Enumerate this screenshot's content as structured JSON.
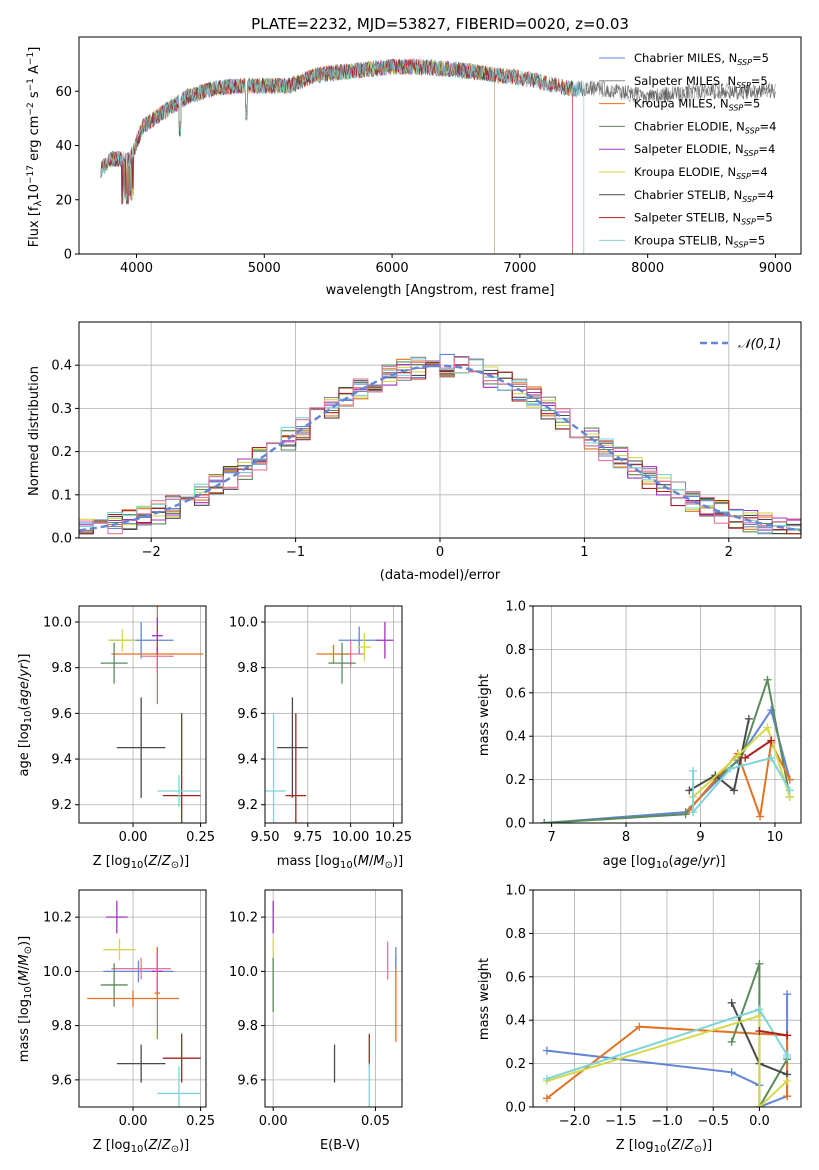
{
  "colors": [
    "#6285d6",
    "#888888",
    "#e37222",
    "#5b8a5b",
    "#a033c0",
    "#d4d94a",
    "#4a4a4a",
    "#a82020",
    "#7ed4d8",
    "#e07aa0"
  ],
  "chart_data": [
    {
      "id": "spectrum",
      "type": "line",
      "title": "PLATE=2232, MJD=53827, FIBERID=0020, z=0.03",
      "xlabel": "wavelength [Angstrom, rest frame]",
      "ylabel": "Flux [f_λ10^-17 erg cm^-2 s^-1 A^-1]",
      "xlim": [
        3550,
        9200
      ],
      "ylim": [
        0,
        80
      ],
      "xticks": [
        "4000",
        "5000",
        "6000",
        "7000",
        "8000",
        "9000"
      ],
      "yticks": [
        "0",
        "20",
        "40",
        "60"
      ],
      "grid": false,
      "legend_position": "top-right",
      "continuum": {
        "x": [
          3700,
          3800,
          3950,
          4050,
          4200,
          4400,
          4600,
          4800,
          5000,
          5200,
          5400,
          5600,
          5800,
          6000,
          6200,
          6500,
          6800,
          7000,
          7200,
          7400,
          7600,
          8000,
          8400,
          8800,
          9000
        ],
        "y": [
          30,
          35,
          35,
          47,
          52,
          58,
          61,
          62,
          62,
          62,
          66,
          67,
          68,
          69,
          69,
          68,
          66,
          65,
          63,
          61,
          61,
          58,
          60,
          60,
          60
        ]
      },
      "series": [
        {
          "name": "Chabrier MILES, N_SSP=5",
          "color": "#6285d6",
          "x_end": 7500
        },
        {
          "name": "Salpeter MILES, N_SSP=5",
          "color": "#888888",
          "x_end": 9000
        },
        {
          "name": "Kroupa MILES, N_SSP=5",
          "color": "#e37222",
          "x_end": 7410
        },
        {
          "name": "Chabrier ELODIE, N_SSP=4",
          "color": "#5b8a5b",
          "x_end": 6800
        },
        {
          "name": "Salpeter ELODIE, N_SSP=4",
          "color": "#a033c0",
          "x_end": 6800
        },
        {
          "name": "Kroupa ELODIE, N_SSP=4",
          "color": "#d4d94a",
          "x_end": 6800
        },
        {
          "name": "Chabrier STELIB, N_SSP=4",
          "color": "#4a4a4a",
          "x_end": 9000
        },
        {
          "name": "Salpeter STELIB, N_SSP=5",
          "color": "#a82020",
          "x_end": 7410
        },
        {
          "name": "Kroupa STELIB, N_SSP=5",
          "color": "#7ed4d8",
          "x_end": 7500
        }
      ]
    },
    {
      "id": "residuals",
      "type": "line",
      "xlabel": "(data-model)/error",
      "ylabel": "Normed distribution",
      "xlim": [
        -2.5,
        2.5
      ],
      "ylim": [
        0,
        0.5
      ],
      "xticks": [
        "−2",
        "−1",
        "0",
        "1",
        "2"
      ],
      "yticks": [
        "0.0",
        "0.1",
        "0.2",
        "0.3",
        "0.4"
      ],
      "grid": true,
      "legend": "𝒩(0,1)",
      "legend_position": "top-right",
      "gaussian_color": "#6285d6",
      "n_hist_series": 10,
      "bin_width": 0.1
    },
    {
      "id": "age-vs-Z",
      "type": "scatter",
      "xlabel": "Z [log10(Z/Z⊙)]",
      "ylabel": "age [log10(age/yr)]",
      "xlim": [
        -0.2,
        0.27
      ],
      "ylim": [
        9.12,
        10.07
      ],
      "xticks": [
        {
          "v": 0.0,
          "t": "0.00"
        },
        {
          "v": 0.25,
          "t": "0.25"
        }
      ],
      "yticks": [
        {
          "v": 9.2,
          "t": "9.2"
        },
        {
          "v": 9.4,
          "t": "9.4"
        },
        {
          "v": 9.6,
          "t": "9.6"
        },
        {
          "v": 9.8,
          "t": "9.8"
        },
        {
          "v": 10.0,
          "t": "10.0"
        }
      ],
      "grid": true,
      "points": [
        {
          "x": 0.03,
          "y": 9.92,
          "xe": 0.12,
          "ye": 0.08,
          "c": "#6285d6"
        },
        {
          "x": 0.09,
          "y": 9.85,
          "xe": 0.06,
          "ye": 0.06,
          "c": "#e07aa0"
        },
        {
          "x": 0.09,
          "y": 9.86,
          "xe": 0.17,
          "ye": 0.22,
          "c": "#e37222"
        },
        {
          "x": -0.07,
          "y": 9.82,
          "xe": 0.05,
          "ye": 0.09,
          "c": "#5b8a5b"
        },
        {
          "x": -0.04,
          "y": 9.92,
          "xe": 0.05,
          "ye": 0.05,
          "c": "#d4d94a"
        },
        {
          "x": 0.03,
          "y": 9.45,
          "xe": 0.09,
          "ye": 0.22,
          "c": "#4a4a4a"
        },
        {
          "x": 0.18,
          "y": 9.24,
          "xe": 0.07,
          "ye": 0.36,
          "c": "#a82020"
        },
        {
          "x": 0.17,
          "y": 9.26,
          "xe": 0.08,
          "ye": 0.07,
          "c": "#7ed4d8"
        },
        {
          "x": 0.09,
          "y": 9.94,
          "xe": 0.02,
          "ye": 0.08,
          "c": "#a033c0"
        }
      ]
    },
    {
      "id": "age-vs-mass",
      "type": "scatter",
      "xlabel": "mass [log10(M/M⊙)]",
      "ylabel": "",
      "xlim": [
        9.5,
        10.3
      ],
      "ylim": [
        9.12,
        10.07
      ],
      "xticks": [
        {
          "v": 9.5,
          "t": "9.50"
        },
        {
          "v": 9.75,
          "t": "9.75"
        },
        {
          "v": 10.0,
          "t": "10.00"
        },
        {
          "v": 10.25,
          "t": "10.25"
        }
      ],
      "yticks": [
        {
          "v": 9.2,
          "t": "9.2"
        },
        {
          "v": 9.4,
          "t": "9.4"
        },
        {
          "v": 9.6,
          "t": "9.6"
        },
        {
          "v": 9.8,
          "t": "9.8"
        },
        {
          "v": 10.0,
          "t": "10.0"
        }
      ],
      "grid": true,
      "points": [
        {
          "x": 10.05,
          "y": 9.92,
          "xe": 0.12,
          "ye": 0.06,
          "c": "#6285d6"
        },
        {
          "x": 10.0,
          "y": 9.86,
          "xe": 0.08,
          "ye": 0.06,
          "c": "#e07aa0"
        },
        {
          "x": 9.9,
          "y": 9.86,
          "xe": 0.1,
          "ye": 0.04,
          "c": "#e37222"
        },
        {
          "x": 9.95,
          "y": 9.82,
          "xe": 0.08,
          "ye": 0.09,
          "c": "#5b8a5b"
        },
        {
          "x": 10.08,
          "y": 9.89,
          "xe": 0.04,
          "ye": 0.06,
          "c": "#d4d94a"
        },
        {
          "x": 10.2,
          "y": 9.92,
          "xe": 0.05,
          "ye": 0.08,
          "c": "#a033c0"
        },
        {
          "x": 9.66,
          "y": 9.45,
          "xe": 0.09,
          "ye": 0.22,
          "c": "#4a4a4a"
        },
        {
          "x": 9.68,
          "y": 9.24,
          "xe": 0.06,
          "ye": 0.36,
          "c": "#a82020"
        },
        {
          "x": 9.55,
          "y": 9.26,
          "xe": 0.07,
          "ye": 0.34,
          "c": "#7ed4d8"
        }
      ]
    },
    {
      "id": "mass-weight-vs-age",
      "type": "line",
      "xlabel": "age [log10(age/yr)]",
      "ylabel": "mass weight",
      "xlim": [
        6.75,
        10.35
      ],
      "ylim": [
        0,
        1
      ],
      "xticks": [
        {
          "v": 7,
          "t": "7"
        },
        {
          "v": 8,
          "t": "8"
        },
        {
          "v": 9,
          "t": "9"
        },
        {
          "v": 10,
          "t": "10"
        }
      ],
      "yticks": [
        {
          "v": 0,
          "t": "0.0"
        },
        {
          "v": 0.2,
          "t": "0.2"
        },
        {
          "v": 0.4,
          "t": "0.4"
        },
        {
          "v": 0.6,
          "t": "0.6"
        },
        {
          "v": 0.8,
          "t": "0.8"
        },
        {
          "v": 1.0,
          "t": "1.0"
        }
      ],
      "grid": true,
      "series": [
        {
          "c": "#6285d6",
          "x": [
            6.9,
            8.8,
            9.5,
            9.95,
            10.2
          ],
          "y": [
            0.0,
            0.05,
            0.29,
            0.52,
            0.2
          ]
        },
        {
          "c": "#5b8a5b",
          "x": [
            6.9,
            8.8,
            9.2,
            9.55,
            9.9,
            10.2
          ],
          "y": [
            0.0,
            0.04,
            0.2,
            0.3,
            0.66,
            0.12
          ]
        },
        {
          "c": "#e37222",
          "x": [
            8.85,
            9.5,
            9.8,
            9.95,
            10.2
          ],
          "y": [
            0.06,
            0.32,
            0.03,
            0.37,
            0.2
          ]
        },
        {
          "c": "#4a4a4a",
          "x": [
            8.85,
            9.2,
            9.45,
            9.65
          ],
          "y": [
            0.15,
            0.22,
            0.15,
            0.48
          ]
        },
        {
          "c": "#d4d94a",
          "x": [
            8.9,
            9.5,
            9.9,
            10.2
          ],
          "y": [
            0.12,
            0.31,
            0.44,
            0.12
          ]
        },
        {
          "c": "#7ed4d8",
          "x": [
            8.9,
            8.9,
            9.4,
            9.95,
            10.2
          ],
          "y": [
            0.24,
            0.05,
            0.25,
            0.3,
            0.15
          ]
        },
        {
          "c": "#a82020",
          "x": [
            9.6,
            9.95
          ],
          "y": [
            0.3,
            0.38
          ]
        }
      ]
    },
    {
      "id": "mass-vs-Z",
      "type": "scatter",
      "xlabel": "Z [log10(Z/Z⊙)]",
      "ylabel": "mass [log10(M/M⊙)]",
      "xlim": [
        -0.2,
        0.27
      ],
      "ylim": [
        9.5,
        10.3
      ],
      "xticks": [
        {
          "v": 0.0,
          "t": "0.00"
        },
        {
          "v": 0.25,
          "t": "0.25"
        }
      ],
      "yticks": [
        {
          "v": 9.6,
          "t": "9.6"
        },
        {
          "v": 9.8,
          "t": "9.8"
        },
        {
          "v": 10.0,
          "t": "10.0"
        },
        {
          "v": 10.2,
          "t": "10.2"
        }
      ],
      "grid": true,
      "points": [
        {
          "x": -0.06,
          "y": 10.2,
          "xe": 0.04,
          "ye": 0.06,
          "c": "#a033c0"
        },
        {
          "x": -0.05,
          "y": 10.08,
          "xe": 0.06,
          "ye": 0.04,
          "c": "#d4d94a"
        },
        {
          "x": 0.02,
          "y": 10.0,
          "xe": 0.13,
          "ye": 0.04,
          "c": "#6285d6"
        },
        {
          "x": 0.03,
          "y": 10.01,
          "xe": 0.11,
          "ye": 0.04,
          "c": "#e07aa0"
        },
        {
          "x": 0.09,
          "y": 10.0,
          "xe": 0.02,
          "ye": 0.09,
          "c": "#a033c0"
        },
        {
          "x": -0.07,
          "y": 9.95,
          "xe": 0.05,
          "ye": 0.08,
          "c": "#5b8a5b"
        },
        {
          "x": 0.0,
          "y": 9.9,
          "xe": 0.17,
          "ye": 0.03,
          "c": "#e37222"
        },
        {
          "x": 0.09,
          "y": 9.92,
          "xe": 0.01,
          "ye": 0.17,
          "c": "#e37222"
        },
        {
          "x": 0.03,
          "y": 9.66,
          "xe": 0.09,
          "ye": 0.07,
          "c": "#4a4a4a"
        },
        {
          "x": 0.18,
          "y": 9.68,
          "xe": 0.07,
          "ye": 0.09,
          "c": "#a82020"
        },
        {
          "x": 0.17,
          "y": 9.55,
          "xe": 0.08,
          "ye": 0.1,
          "c": "#7ed4d8"
        }
      ]
    },
    {
      "id": "mass-vs-EBV",
      "type": "scatter",
      "xlabel": "E(B-V)",
      "ylabel": "",
      "xlim": [
        -0.004,
        0.063
      ],
      "ylim": [
        9.5,
        10.3
      ],
      "xticks": [
        {
          "v": 0.0,
          "t": "0.00"
        },
        {
          "v": 0.05,
          "t": "0.05"
        }
      ],
      "yticks": [
        {
          "v": 9.6,
          "t": "9.6"
        },
        {
          "v": 9.8,
          "t": "9.8"
        },
        {
          "v": 10.0,
          "t": "10.0"
        },
        {
          "v": 10.2,
          "t": "10.2"
        }
      ],
      "grid": true,
      "points": [
        {
          "x": 0.0,
          "y": 10.2,
          "xe": 0,
          "ye": 0.06,
          "c": "#a033c0"
        },
        {
          "x": 0.0,
          "y": 10.08,
          "xe": 0,
          "ye": 0.04,
          "c": "#d4d94a"
        },
        {
          "x": 0.0,
          "y": 9.95,
          "xe": 0,
          "ye": 0.1,
          "c": "#5b8a5b"
        },
        {
          "x": 0.03,
          "y": 9.66,
          "xe": 0,
          "ye": 0.07,
          "c": "#4a4a4a"
        },
        {
          "x": 0.047,
          "y": 9.71,
          "xe": 0,
          "ye": 0.06,
          "c": "#a82020"
        },
        {
          "x": 0.047,
          "y": 9.58,
          "xe": 0,
          "ye": 0.08,
          "c": "#7ed4d8"
        },
        {
          "x": 0.056,
          "y": 10.04,
          "xe": 0,
          "ye": 0.07,
          "c": "#e07aa0"
        },
        {
          "x": 0.06,
          "y": 9.9,
          "xe": 0,
          "ye": 0.16,
          "c": "#e37222"
        },
        {
          "x": 0.06,
          "y": 10.05,
          "xe": 0,
          "ye": 0.04,
          "c": "#6285d6"
        }
      ]
    },
    {
      "id": "mass-weight-vs-Z",
      "type": "line",
      "xlabel": "Z [log10(Z/Z⊙)]",
      "ylabel": "mass weight",
      "xlim": [
        -2.45,
        0.45
      ],
      "ylim": [
        0,
        1
      ],
      "xticks": [
        {
          "v": -2.0,
          "t": "−2.0"
        },
        {
          "v": -1.5,
          "t": "−1.5"
        },
        {
          "v": -1.0,
          "t": "−1.0"
        },
        {
          "v": -0.5,
          "t": "−0.5"
        },
        {
          "v": 0.0,
          "t": "0.0"
        }
      ],
      "yticks": [
        {
          "v": 0,
          "t": "0.0"
        },
        {
          "v": 0.2,
          "t": "0.2"
        },
        {
          "v": 0.4,
          "t": "0.4"
        },
        {
          "v": 0.6,
          "t": "0.6"
        },
        {
          "v": 0.8,
          "t": "0.8"
        },
        {
          "v": 1.0,
          "t": "1.0"
        }
      ],
      "grid": true,
      "series": [
        {
          "c": "#6285d6",
          "x": [
            -2.3,
            -0.3,
            0.0,
            0.0,
            0.3,
            0.3
          ],
          "y": [
            0.26,
            0.16,
            0.1,
            0.0,
            0.05,
            0.52
          ]
        },
        {
          "c": "#e37222",
          "x": [
            -2.3,
            -1.3,
            0.3,
            0.3
          ],
          "y": [
            0.04,
            0.37,
            0.33,
            0.05
          ]
        },
        {
          "c": "#5b8a5b",
          "x": [
            -0.3,
            0.0,
            0.0,
            0.3
          ],
          "y": [
            0.3,
            0.66,
            0.0,
            0.22
          ]
        },
        {
          "c": "#4a4a4a",
          "x": [
            -0.3,
            0.0,
            0.3
          ],
          "y": [
            0.48,
            0.2,
            0.15
          ]
        },
        {
          "c": "#d4d94a",
          "x": [
            -2.3,
            0.0,
            0.0,
            0.3
          ],
          "y": [
            0.12,
            0.42,
            0.0,
            0.12
          ]
        },
        {
          "c": "#7ed4d8",
          "x": [
            -2.3,
            0.0,
            0.3,
            0.3
          ],
          "y": [
            0.13,
            0.45,
            0.24,
            0.23
          ]
        },
        {
          "c": "#a82020",
          "x": [
            0.0,
            0.3
          ],
          "y": [
            0.35,
            0.33
          ]
        }
      ]
    }
  ]
}
